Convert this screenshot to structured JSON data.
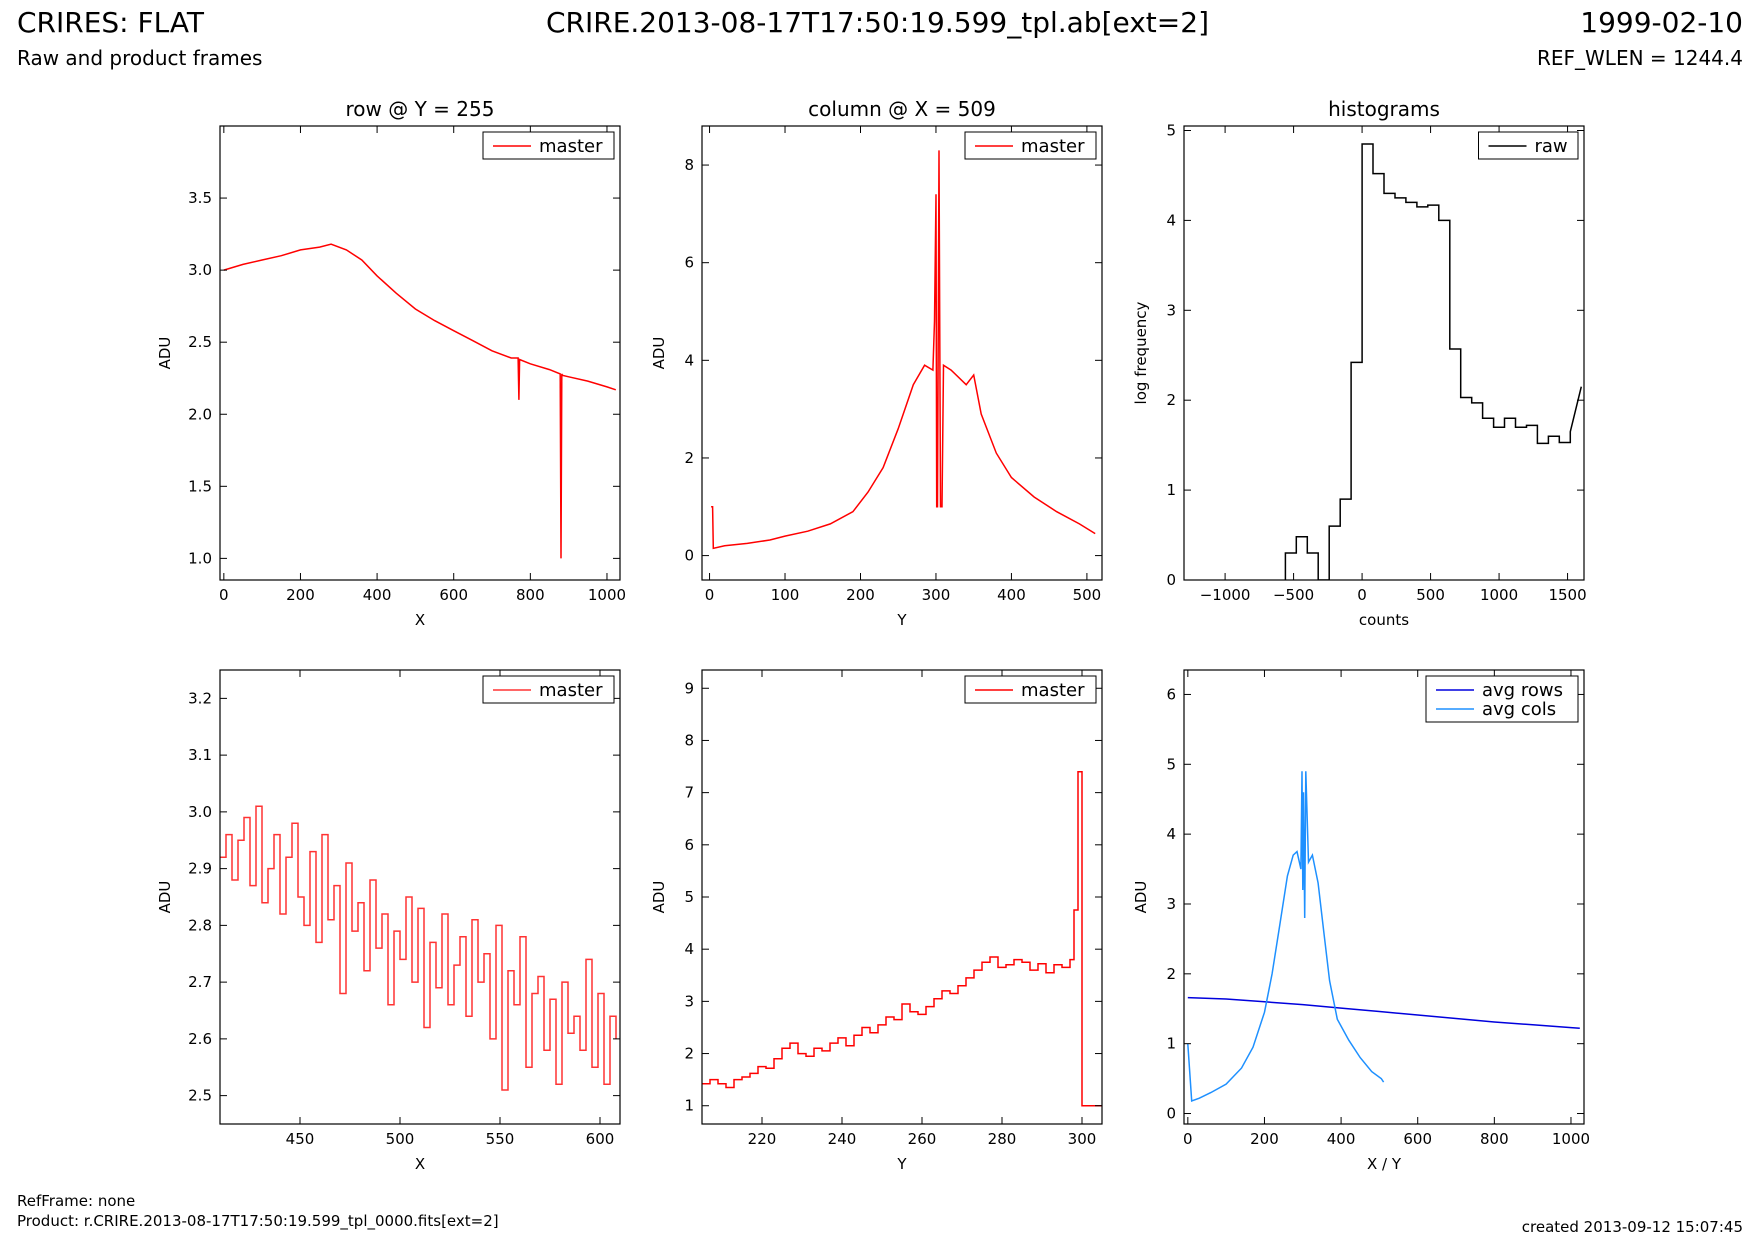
{
  "header": {
    "title_left": "CRIRES: FLAT",
    "subtitle_left": "Raw and product frames",
    "title_center": "CRIRE.2013-08-17T17:50:19.599_tpl.ab[ext=2]",
    "title_right": "1999-02-10",
    "subtitle_right": "REF_WLEN = 1244.4"
  },
  "footer": {
    "refframe": "RefFrame: none",
    "product": "Product: r.CRIRE.2013-08-17T17:50:19.599_tpl_0000.fits[ext=2]",
    "created": "created 2013-09-12 15:07:45"
  },
  "chart_data": [
    {
      "type": "line",
      "title": "row @ Y = 255",
      "xlabel": "X",
      "ylabel": "ADU",
      "xlim": [
        -10,
        1034
      ],
      "ylim": [
        0.85,
        4.0
      ],
      "xticks": [
        0,
        200,
        400,
        600,
        800,
        1000
      ],
      "yticks": [
        1.0,
        1.5,
        2.0,
        2.5,
        3.0,
        3.5
      ],
      "ytick_format": 1,
      "legend": "top-right",
      "series": [
        {
          "name": "master",
          "color": "#ff0000",
          "x": [
            0,
            50,
            100,
            150,
            200,
            250,
            280,
            320,
            360,
            400,
            450,
            500,
            550,
            600,
            650,
            700,
            750,
            768,
            770,
            772,
            800,
            850,
            878,
            880,
            882,
            884,
            900,
            950,
            1000,
            1023
          ],
          "y": [
            3.0,
            3.04,
            3.07,
            3.1,
            3.14,
            3.16,
            3.18,
            3.14,
            3.07,
            2.96,
            2.84,
            2.73,
            2.65,
            2.58,
            2.51,
            2.44,
            2.39,
            2.39,
            2.1,
            2.38,
            2.35,
            2.31,
            2.28,
            1.0,
            2.28,
            2.27,
            2.26,
            2.23,
            2.19,
            2.17
          ]
        }
      ]
    },
    {
      "type": "line",
      "title": "column @ X = 509",
      "xlabel": "Y",
      "ylabel": "ADU",
      "xlim": [
        -10,
        520
      ],
      "ylim": [
        -0.5,
        8.8
      ],
      "xticks": [
        0,
        100,
        200,
        300,
        400,
        500
      ],
      "yticks": [
        0,
        2,
        4,
        6,
        8
      ],
      "ytick_format": 0,
      "legend": "top-right",
      "series": [
        {
          "name": "master",
          "color": "#ff0000",
          "x": [
            2,
            4,
            5,
            20,
            50,
            80,
            100,
            130,
            160,
            190,
            210,
            230,
            250,
            270,
            285,
            296,
            298,
            300,
            301,
            302,
            304,
            306,
            308,
            310,
            320,
            340,
            350,
            360,
            380,
            400,
            430,
            460,
            490,
            511
          ],
          "y": [
            1.0,
            1.0,
            0.15,
            0.2,
            0.25,
            0.32,
            0.4,
            0.5,
            0.65,
            0.9,
            1.3,
            1.8,
            2.6,
            3.5,
            3.9,
            3.8,
            4.8,
            7.4,
            1.0,
            1.0,
            8.3,
            1.0,
            1.0,
            3.9,
            3.8,
            3.5,
            3.7,
            2.9,
            2.1,
            1.6,
            1.2,
            0.9,
            0.65,
            0.45
          ]
        }
      ]
    },
    {
      "type": "line",
      "title": "histograms",
      "xlabel": "counts",
      "ylabel": "log frequency",
      "xlim": [
        -1300,
        1620
      ],
      "ylim": [
        0,
        5.05
      ],
      "xticks": [
        -1000,
        -500,
        0,
        500,
        1000,
        1500
      ],
      "yticks": [
        0,
        1,
        2,
        3,
        4,
        5
      ],
      "ytick_format": 0,
      "legend": "top-right",
      "series": [
        {
          "name": "raw",
          "color": "#000000",
          "x": [
            -560,
            -560,
            -480,
            -480,
            -400,
            -400,
            -320,
            -320,
            -240,
            -240,
            -160,
            -160,
            -80,
            -80,
            0,
            0,
            80,
            80,
            160,
            160,
            240,
            240,
            320,
            320,
            400,
            400,
            480,
            480,
            560,
            560,
            640,
            640,
            720,
            720,
            800,
            800,
            880,
            880,
            960,
            960,
            1040,
            1040,
            1120,
            1120,
            1200,
            1200,
            1280,
            1280,
            1360,
            1360,
            1440,
            1440,
            1520,
            1520,
            1600
          ],
          "y": [
            0,
            0.3,
            0.3,
            0.48,
            0.48,
            0.3,
            0.3,
            0,
            0,
            0.6,
            0.6,
            0.9,
            0.9,
            2.42,
            2.42,
            4.85,
            4.85,
            4.52,
            4.52,
            4.3,
            4.3,
            4.25,
            4.25,
            4.2,
            4.2,
            4.15,
            4.15,
            4.17,
            4.17,
            4.0,
            4.0,
            2.57,
            2.57,
            2.03,
            2.03,
            1.97,
            1.97,
            1.8,
            1.8,
            1.7,
            1.7,
            1.8,
            1.8,
            1.7,
            1.7,
            1.72,
            1.72,
            1.52,
            1.52,
            1.6,
            1.6,
            1.53,
            1.53,
            1.65,
            2.15
          ]
        }
      ]
    },
    {
      "type": "line",
      "title": "",
      "xlabel": "X",
      "ylabel": "ADU",
      "xlim": [
        410,
        610
      ],
      "ylim": [
        2.45,
        3.25
      ],
      "xticks": [
        450,
        500,
        550,
        600
      ],
      "yticks": [
        2.5,
        2.6,
        2.7,
        2.8,
        2.9,
        3.0,
        3.1,
        3.2
      ],
      "ytick_format": 1,
      "legend": "top-right",
      "series": [
        {
          "name": "master",
          "color": "#ff3333",
          "step": true,
          "x": [
            410,
            413,
            416,
            419,
            422,
            425,
            428,
            431,
            434,
            437,
            440,
            443,
            446,
            449,
            452,
            455,
            458,
            461,
            464,
            467,
            470,
            473,
            476,
            479,
            482,
            485,
            488,
            491,
            494,
            497,
            500,
            503,
            506,
            509,
            512,
            515,
            518,
            521,
            524,
            527,
            530,
            533,
            536,
            539,
            542,
            545,
            548,
            551,
            554,
            557,
            560,
            563,
            566,
            569,
            572,
            575,
            578,
            581,
            584,
            587,
            590,
            593,
            596,
            599,
            602,
            605,
            608
          ],
          "y": [
            2.92,
            2.96,
            2.88,
            2.95,
            2.99,
            2.87,
            3.01,
            2.84,
            2.9,
            2.96,
            2.82,
            2.92,
            2.98,
            2.85,
            2.8,
            2.93,
            2.77,
            2.96,
            2.81,
            2.87,
            2.68,
            2.91,
            2.79,
            2.84,
            2.72,
            2.88,
            2.76,
            2.82,
            2.66,
            2.79,
            2.74,
            2.85,
            2.7,
            2.83,
            2.62,
            2.77,
            2.69,
            2.82,
            2.66,
            2.73,
            2.78,
            2.64,
            2.81,
            2.7,
            2.75,
            2.6,
            2.8,
            2.51,
            2.72,
            2.66,
            2.78,
            2.55,
            2.68,
            2.71,
            2.58,
            2.67,
            2.52,
            2.7,
            2.61,
            2.64,
            2.58,
            2.74,
            2.55,
            2.68,
            2.52,
            2.64,
            2.6
          ]
        }
      ]
    },
    {
      "type": "line",
      "title": "",
      "xlabel": "Y",
      "ylabel": "ADU",
      "xlim": [
        205,
        305
      ],
      "ylim": [
        0.65,
        9.35
      ],
      "xticks": [
        220,
        240,
        260,
        280,
        300
      ],
      "yticks": [
        1,
        2,
        3,
        4,
        5,
        6,
        7,
        8,
        9
      ],
      "ytick_format": 0,
      "legend": "top-right",
      "series": [
        {
          "name": "master",
          "color": "#ff0000",
          "step": true,
          "x": [
            205,
            207,
            209,
            211,
            213,
            215,
            217,
            219,
            221,
            223,
            225,
            227,
            229,
            231,
            233,
            235,
            237,
            239,
            241,
            243,
            245,
            247,
            249,
            251,
            253,
            255,
            257,
            259,
            261,
            263,
            265,
            267,
            269,
            271,
            273,
            275,
            277,
            279,
            281,
            283,
            285,
            287,
            289,
            291,
            293,
            295,
            297,
            298,
            299,
            300,
            302,
            305
          ],
          "y": [
            1.42,
            1.5,
            1.42,
            1.35,
            1.5,
            1.55,
            1.62,
            1.75,
            1.72,
            1.9,
            2.1,
            2.2,
            2.0,
            1.95,
            2.1,
            2.05,
            2.2,
            2.3,
            2.15,
            2.35,
            2.5,
            2.4,
            2.55,
            2.7,
            2.65,
            2.95,
            2.8,
            2.75,
            2.9,
            3.05,
            3.2,
            3.15,
            3.3,
            3.45,
            3.6,
            3.75,
            3.85,
            3.65,
            3.7,
            3.8,
            3.75,
            3.6,
            3.72,
            3.55,
            3.7,
            3.65,
            3.8,
            4.75,
            7.4,
            1.0,
            1.0,
            1.0
          ]
        }
      ]
    },
    {
      "type": "line",
      "title": "",
      "xlabel": "X / Y",
      "ylabel": "ADU",
      "xlim": [
        -10,
        1034
      ],
      "ylim": [
        -0.15,
        6.35
      ],
      "xticks": [
        0,
        200,
        400,
        600,
        800,
        1000
      ],
      "yticks": [
        0,
        1,
        2,
        3,
        4,
        5,
        6
      ],
      "ytick_format": 0,
      "legend": "top-right",
      "series": [
        {
          "name": "avg rows",
          "color": "#0000dd",
          "x": [
            0,
            100,
            200,
            300,
            400,
            500,
            600,
            700,
            800,
            900,
            1000,
            1023
          ],
          "y": [
            1.66,
            1.64,
            1.6,
            1.56,
            1.51,
            1.46,
            1.41,
            1.36,
            1.31,
            1.27,
            1.23,
            1.22
          ]
        },
        {
          "name": "avg cols",
          "color": "#1e90ff",
          "x": [
            0,
            5,
            10,
            30,
            60,
            100,
            140,
            170,
            200,
            220,
            240,
            260,
            275,
            285,
            295,
            298,
            300,
            302,
            305,
            308,
            315,
            325,
            340,
            355,
            370,
            390,
            420,
            450,
            480,
            505,
            511
          ],
          "y": [
            1.0,
            0.6,
            0.18,
            0.22,
            0.3,
            0.42,
            0.65,
            0.95,
            1.45,
            2.0,
            2.7,
            3.4,
            3.7,
            3.75,
            3.5,
            4.9,
            3.2,
            4.6,
            2.8,
            4.9,
            3.6,
            3.7,
            3.3,
            2.6,
            1.9,
            1.35,
            1.05,
            0.8,
            0.6,
            0.5,
            0.45
          ]
        }
      ]
    }
  ]
}
